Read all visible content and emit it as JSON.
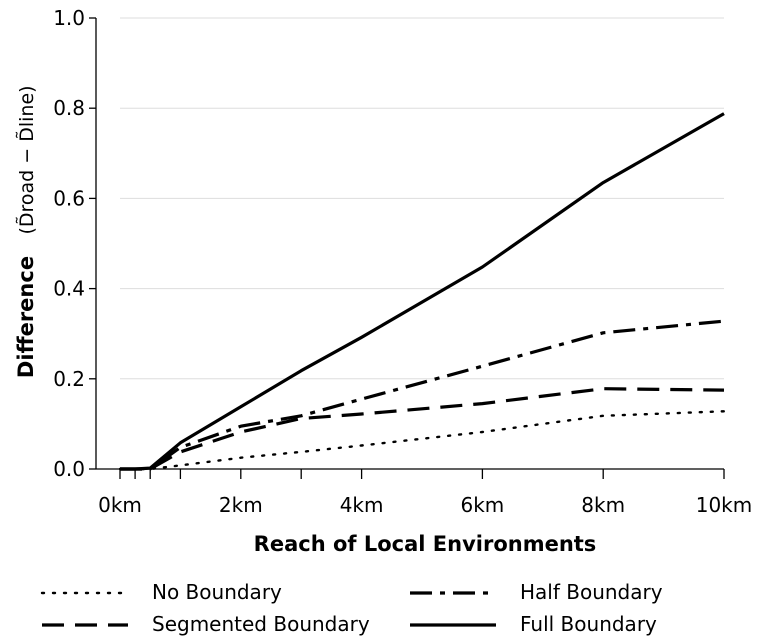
{
  "chart_data": {
    "type": "line",
    "title": "",
    "xlabel": "Reach of Local Environments",
    "ylabel": "Difference",
    "ylabel_formula": "(D̃road − D̃line)",
    "x": [
      0,
      0.25,
      0.5,
      1,
      2,
      3,
      4,
      6,
      8,
      10
    ],
    "xlim": [
      0,
      10
    ],
    "ylim": [
      0,
      1.0
    ],
    "x_ticks": [
      0,
      2,
      4,
      6,
      8,
      10
    ],
    "x_tick_labels": [
      "0km",
      "2km",
      "4km",
      "6km",
      "8km",
      "10km"
    ],
    "x_minor_ticks": [
      0.25,
      0.5,
      1,
      3
    ],
    "y_ticks": [
      0,
      0.2,
      0.4,
      0.6,
      0.8,
      1.0
    ],
    "y_tick_labels": [
      "0.0",
      "0.2",
      "0.4",
      "0.6",
      "0.8",
      "1.0"
    ],
    "grid": "horizontal",
    "legend_position": "bottom",
    "series": [
      {
        "name": "No Boundary",
        "style": "dotted",
        "values": [
          0,
          0,
          0,
          0.008,
          0.025,
          0.038,
          0.052,
          0.082,
          0.118,
          0.128
        ]
      },
      {
        "name": "Half Boundary",
        "style": "dashdot",
        "values": [
          0,
          0,
          0,
          0.048,
          0.095,
          0.118,
          0.155,
          0.228,
          0.302,
          0.328
        ]
      },
      {
        "name": "Segmented Boundary",
        "style": "dashed",
        "values": [
          0,
          0,
          0,
          0.038,
          0.082,
          0.112,
          0.122,
          0.145,
          0.178,
          0.175
        ]
      },
      {
        "name": "Full Boundary",
        "style": "solid",
        "values": [
          0,
          0,
          0.002,
          0.058,
          0.138,
          0.218,
          0.292,
          0.448,
          0.635,
          0.788
        ]
      }
    ],
    "colors": {
      "line": "#000000",
      "grid": "#dddddd",
      "background": "#ffffff"
    }
  }
}
